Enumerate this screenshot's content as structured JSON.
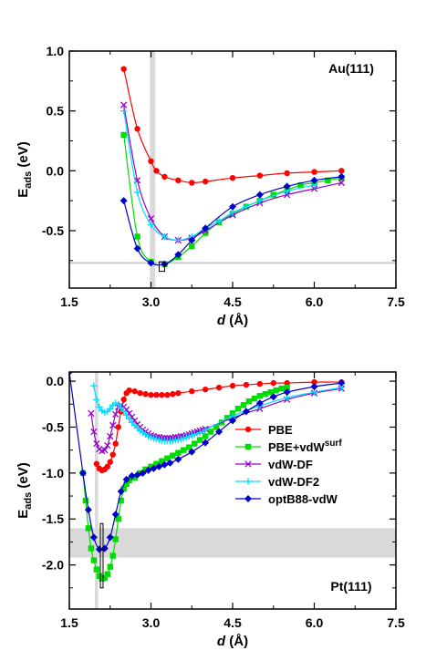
{
  "chart_data": [
    {
      "type": "line",
      "panel_label": "Au(111)",
      "xlabel_var": "d",
      "xlabel_unit": " (Å)",
      "ylabel_main": "E",
      "ylabel_sub": "ads",
      "ylabel_unit": " (eV)",
      "xlim": [
        1.5,
        7.5
      ],
      "ylim": [
        -0.98,
        1.0
      ],
      "xticks": [
        1.5,
        3.0,
        4.5,
        6.0,
        7.5
      ],
      "xtick_labels": [
        "1.5",
        "3.0",
        "4.5",
        "6.0",
        "7.5"
      ],
      "yticks": [
        1.0,
        0.5,
        0.0,
        -0.5
      ],
      "ytick_labels": [
        "1.0",
        "0.5",
        "0.0",
        "-0.5"
      ],
      "grid": false,
      "vband": [
        2.98,
        3.08
      ],
      "hline": -0.77,
      "exp_box": {
        "x": [
          3.15,
          3.25
        ],
        "y": [
          -0.76,
          -0.84
        ]
      },
      "series": [
        {
          "name": "PBE",
          "color": "#ff0000",
          "marker": "circle",
          "x": [
            2.5,
            2.75,
            3.0,
            3.1,
            3.25,
            3.5,
            3.75,
            4.0,
            4.5,
            5.0,
            5.5,
            6.0,
            6.5
          ],
          "y": [
            0.85,
            0.35,
            0.08,
            0.0,
            -0.05,
            -0.08,
            -0.1,
            -0.09,
            -0.06,
            -0.04,
            -0.02,
            -0.01,
            0.0
          ]
        },
        {
          "name": "PBE+vdW^surf",
          "color": "#00dd00",
          "marker": "square",
          "x": [
            2.5,
            2.75,
            3.0,
            3.25,
            3.5,
            3.75,
            4.0,
            4.25,
            4.5,
            4.75,
            5.0,
            5.25,
            5.5,
            5.75,
            6.0,
            6.25,
            6.5
          ],
          "y": [
            0.3,
            -0.55,
            -0.76,
            -0.78,
            -0.72,
            -0.63,
            -0.52,
            -0.43,
            -0.36,
            -0.3,
            -0.25,
            -0.2,
            -0.16,
            -0.12,
            -0.1,
            -0.08,
            -0.06
          ]
        },
        {
          "name": "vdW-DF",
          "color": "#9900cc",
          "marker": "x",
          "x": [
            2.5,
            2.75,
            3.0,
            3.25,
            3.5,
            3.75,
            4.0,
            4.5,
            5.0,
            5.5,
            6.0,
            6.5
          ],
          "y": [
            0.55,
            -0.08,
            -0.4,
            -0.55,
            -0.58,
            -0.56,
            -0.5,
            -0.37,
            -0.27,
            -0.2,
            -0.15,
            -0.1
          ]
        },
        {
          "name": "vdW-DF2",
          "color": "#00ddff",
          "marker": "plus",
          "x": [
            2.5,
            2.75,
            3.0,
            3.25,
            3.5,
            3.75,
            4.0,
            4.25,
            4.5,
            4.75,
            5.0,
            5.5,
            6.0
          ],
          "y": [
            0.5,
            -0.18,
            -0.45,
            -0.55,
            -0.58,
            -0.55,
            -0.48,
            -0.42,
            -0.35,
            -0.3,
            -0.25,
            -0.17,
            -0.12
          ]
        },
        {
          "name": "optB88-vdW",
          "color": "#0000cc",
          "marker": "diamond",
          "x": [
            2.5,
            2.75,
            3.0,
            3.25,
            3.5,
            3.75,
            4.0,
            4.5,
            5.0,
            5.5,
            6.0,
            6.5
          ],
          "y": [
            -0.25,
            -0.65,
            -0.77,
            -0.78,
            -0.7,
            -0.58,
            -0.48,
            -0.3,
            -0.2,
            -0.13,
            -0.08,
            -0.05
          ]
        }
      ]
    },
    {
      "type": "line",
      "panel_label": "Pt(111)",
      "xlabel_var": "d",
      "xlabel_unit": " (Å)",
      "ylabel_main": "E",
      "ylabel_sub": "ads",
      "ylabel_unit": " (eV)",
      "xlim": [
        1.5,
        7.5
      ],
      "ylim": [
        -2.48,
        0.1
      ],
      "xticks": [
        1.5,
        3.0,
        4.5,
        6.0,
        7.5
      ],
      "xtick_labels": [
        "1.5",
        "3.0",
        "4.5",
        "6.0",
        "7.5"
      ],
      "yticks": [
        0.0,
        -0.5,
        -1.0,
        -1.5,
        -2.0
      ],
      "ytick_labels": [
        "0.0",
        "-0.5",
        "-1.0",
        "-1.5",
        "-2.0"
      ],
      "grid": false,
      "vband": [
        1.97,
        2.03
      ],
      "hband": [
        -1.6,
        -1.92
      ],
      "exp_box": {
        "x": [
          2.07,
          2.12
        ],
        "y": [
          -1.55,
          -2.25
        ]
      },
      "legend_position": "right",
      "series": [
        {
          "name": "PBE",
          "color": "#ff0000",
          "marker": "circle",
          "x": [
            2.0,
            2.05,
            2.1,
            2.15,
            2.2,
            2.25,
            2.3,
            2.35,
            2.4,
            2.45,
            2.5,
            2.55,
            2.6,
            2.7,
            2.8,
            2.9,
            3.0,
            3.1,
            3.2,
            3.3,
            3.4,
            3.5,
            3.75,
            4.0,
            4.25,
            4.5,
            4.75,
            5.0,
            5.25,
            5.5,
            6.0,
            6.5
          ],
          "y": [
            -0.9,
            -0.95,
            -0.97,
            -0.96,
            -0.93,
            -0.88,
            -0.8,
            -0.68,
            -0.5,
            -0.33,
            -0.2,
            -0.13,
            -0.1,
            -0.11,
            -0.13,
            -0.14,
            -0.15,
            -0.15,
            -0.15,
            -0.15,
            -0.14,
            -0.13,
            -0.11,
            -0.09,
            -0.07,
            -0.05,
            -0.04,
            -0.03,
            -0.02,
            -0.02,
            -0.01,
            -0.01
          ]
        },
        {
          "name": "PBE+vdW^surf",
          "color": "#00dd00",
          "marker": "square",
          "x": [
            1.75,
            1.8,
            1.85,
            1.9,
            1.95,
            2.0,
            2.05,
            2.1,
            2.15,
            2.2,
            2.25,
            2.3,
            2.35,
            2.4,
            2.45,
            2.5,
            2.55,
            2.6,
            2.7,
            2.8,
            2.9,
            3.0,
            3.1,
            3.2,
            3.3,
            3.4,
            3.5,
            3.6,
            3.7,
            3.8,
            3.9,
            4.0,
            4.1,
            4.2,
            4.3,
            4.4,
            4.5,
            4.6,
            4.7,
            4.8,
            4.9,
            5.0,
            5.1,
            5.2,
            5.3,
            5.4,
            5.5
          ],
          "y": [
            -1.0,
            -1.3,
            -1.6,
            -1.82,
            -1.95,
            -2.05,
            -2.12,
            -2.15,
            -2.14,
            -2.1,
            -2.02,
            -1.9,
            -1.72,
            -1.5,
            -1.3,
            -1.17,
            -1.12,
            -1.08,
            -1.05,
            -1.0,
            -0.96,
            -0.93,
            -0.9,
            -0.87,
            -0.84,
            -0.81,
            -0.78,
            -0.75,
            -0.72,
            -0.68,
            -0.64,
            -0.6,
            -0.55,
            -0.5,
            -0.45,
            -0.4,
            -0.35,
            -0.3,
            -0.26,
            -0.22,
            -0.19,
            -0.16,
            -0.14,
            -0.12,
            -0.1,
            -0.08,
            -0.07
          ]
        },
        {
          "name": "vdW-DF",
          "color": "#9900cc",
          "marker": "x",
          "x": [
            1.9,
            1.95,
            2.0,
            2.05,
            2.1,
            2.15,
            2.2,
            2.25,
            2.3,
            2.35,
            2.4,
            2.45,
            2.5,
            2.55,
            2.6,
            2.65,
            2.7,
            2.75,
            2.8,
            2.85,
            2.9,
            2.95,
            3.0,
            3.05,
            3.1,
            3.15,
            3.2,
            3.25,
            3.3,
            3.35,
            3.4,
            3.45,
            3.5,
            3.55,
            3.6,
            3.65,
            3.7,
            3.75,
            3.8,
            3.85,
            3.9,
            3.95,
            4.0,
            4.5,
            5.0,
            5.5,
            6.0,
            6.5
          ],
          "y": [
            -0.35,
            -0.55,
            -0.68,
            -0.74,
            -0.76,
            -0.75,
            -0.7,
            -0.6,
            -0.48,
            -0.36,
            -0.28,
            -0.26,
            -0.28,
            -0.31,
            -0.35,
            -0.39,
            -0.43,
            -0.47,
            -0.5,
            -0.53,
            -0.55,
            -0.57,
            -0.59,
            -0.6,
            -0.61,
            -0.61,
            -0.62,
            -0.62,
            -0.62,
            -0.62,
            -0.62,
            -0.61,
            -0.61,
            -0.6,
            -0.6,
            -0.59,
            -0.58,
            -0.57,
            -0.56,
            -0.55,
            -0.54,
            -0.53,
            -0.52,
            -0.4,
            -0.3,
            -0.2,
            -0.13,
            -0.08
          ]
        },
        {
          "name": "vdW-DF2",
          "color": "#00ddff",
          "marker": "plus",
          "x": [
            1.95,
            2.0,
            2.05,
            2.1,
            2.15,
            2.2,
            2.25,
            2.3,
            2.35,
            2.4,
            2.45,
            2.5,
            2.55,
            2.6,
            2.65,
            2.7,
            2.75,
            2.8,
            2.85,
            2.9,
            2.95,
            3.0,
            3.05,
            3.1,
            3.15,
            3.2,
            3.25,
            3.3,
            3.35,
            3.4,
            3.45,
            3.5,
            3.55,
            3.6,
            3.65,
            3.7,
            3.75,
            3.8,
            3.9,
            4.0,
            4.5,
            5.0,
            5.5,
            6.0,
            6.5
          ],
          "y": [
            -0.05,
            -0.2,
            -0.28,
            -0.32,
            -0.34,
            -0.33,
            -0.3,
            -0.26,
            -0.24,
            -0.25,
            -0.29,
            -0.33,
            -0.37,
            -0.41,
            -0.45,
            -0.48,
            -0.51,
            -0.54,
            -0.56,
            -0.58,
            -0.6,
            -0.61,
            -0.62,
            -0.63,
            -0.64,
            -0.65,
            -0.65,
            -0.65,
            -0.65,
            -0.65,
            -0.64,
            -0.64,
            -0.63,
            -0.62,
            -0.61,
            -0.6,
            -0.59,
            -0.58,
            -0.56,
            -0.53,
            -0.38,
            -0.27,
            -0.18,
            -0.12,
            -0.07
          ]
        },
        {
          "name": "optB88-vdW",
          "color": "#0000cc",
          "marker": "diamond",
          "x": [
            1.5,
            1.75,
            1.85,
            1.95,
            2.05,
            2.15,
            2.25,
            2.35,
            2.45,
            2.55,
            2.65,
            2.75,
            2.85,
            2.95,
            3.05,
            3.15,
            3.25,
            3.35,
            3.5,
            3.75,
            4.0,
            4.25,
            4.5,
            4.75,
            5.0,
            5.25,
            5.5,
            6.0,
            6.5
          ],
          "y": [
            0.1,
            -1.0,
            -1.4,
            -1.7,
            -1.83,
            -1.82,
            -1.7,
            -1.45,
            -1.2,
            -1.07,
            -1.03,
            -1.02,
            -1.0,
            -0.97,
            -0.95,
            -0.93,
            -0.91,
            -0.89,
            -0.85,
            -0.77,
            -0.67,
            -0.55,
            -0.43,
            -0.33,
            -0.24,
            -0.17,
            -0.12,
            -0.06,
            -0.02
          ]
        }
      ]
    }
  ]
}
